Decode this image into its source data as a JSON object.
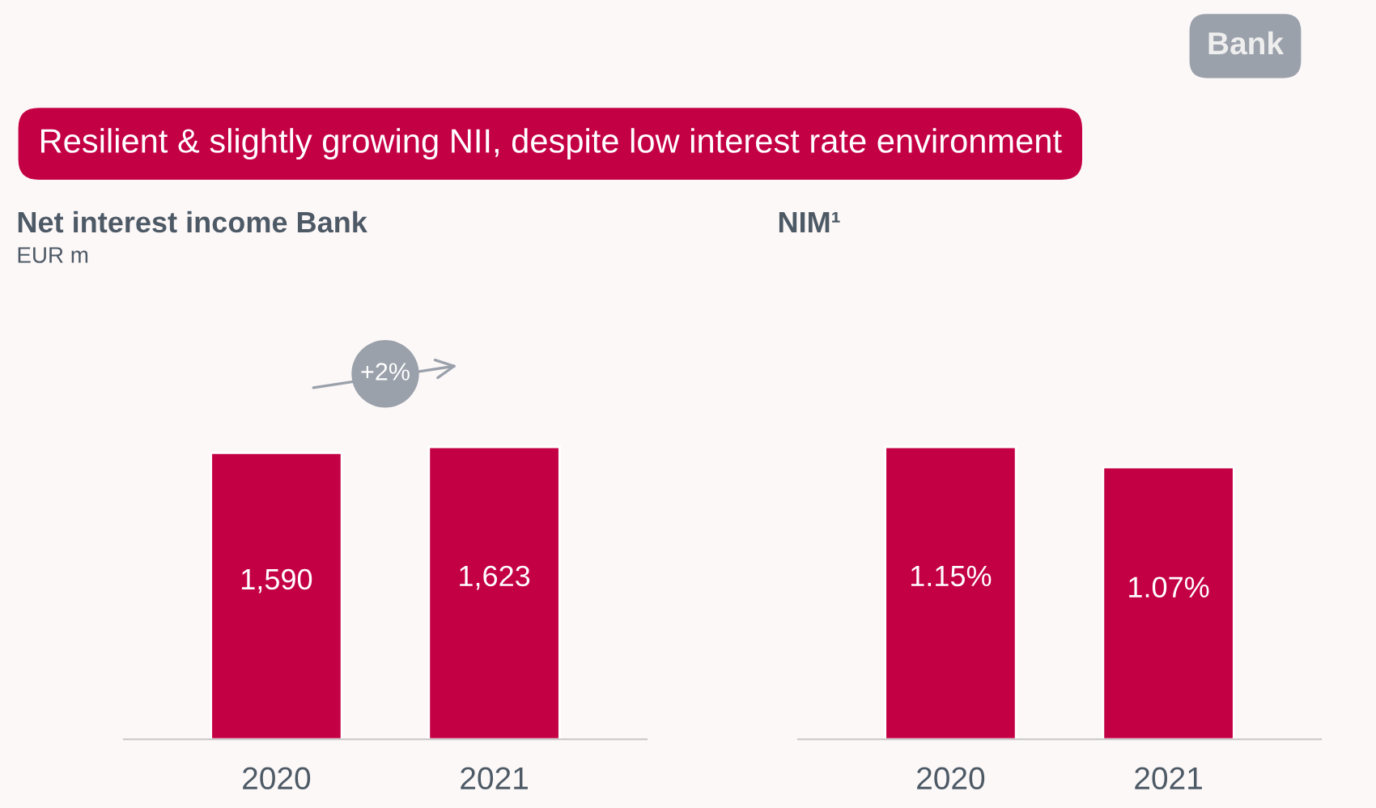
{
  "chart_data": [
    {
      "type": "bar",
      "title": "Net interest income Bank",
      "subtitle": "EUR m",
      "categories": [
        "2020",
        "2021"
      ],
      "values": [
        1590,
        1623
      ],
      "value_labels": [
        "1,590",
        "1,623"
      ],
      "color": "#c40044",
      "annotations": [
        "Bank",
        "Resilient & slightly growing NII, despite low interest rate environment",
        "+2%"
      ]
    },
    {
      "type": "bar",
      "title": "NIM¹",
      "categories": [
        "2020",
        "2021"
      ],
      "values": [
        1.15,
        1.07
      ],
      "value_labels": [
        "1.15%",
        "1.07%"
      ],
      "color": "#c40044"
    }
  ]
}
